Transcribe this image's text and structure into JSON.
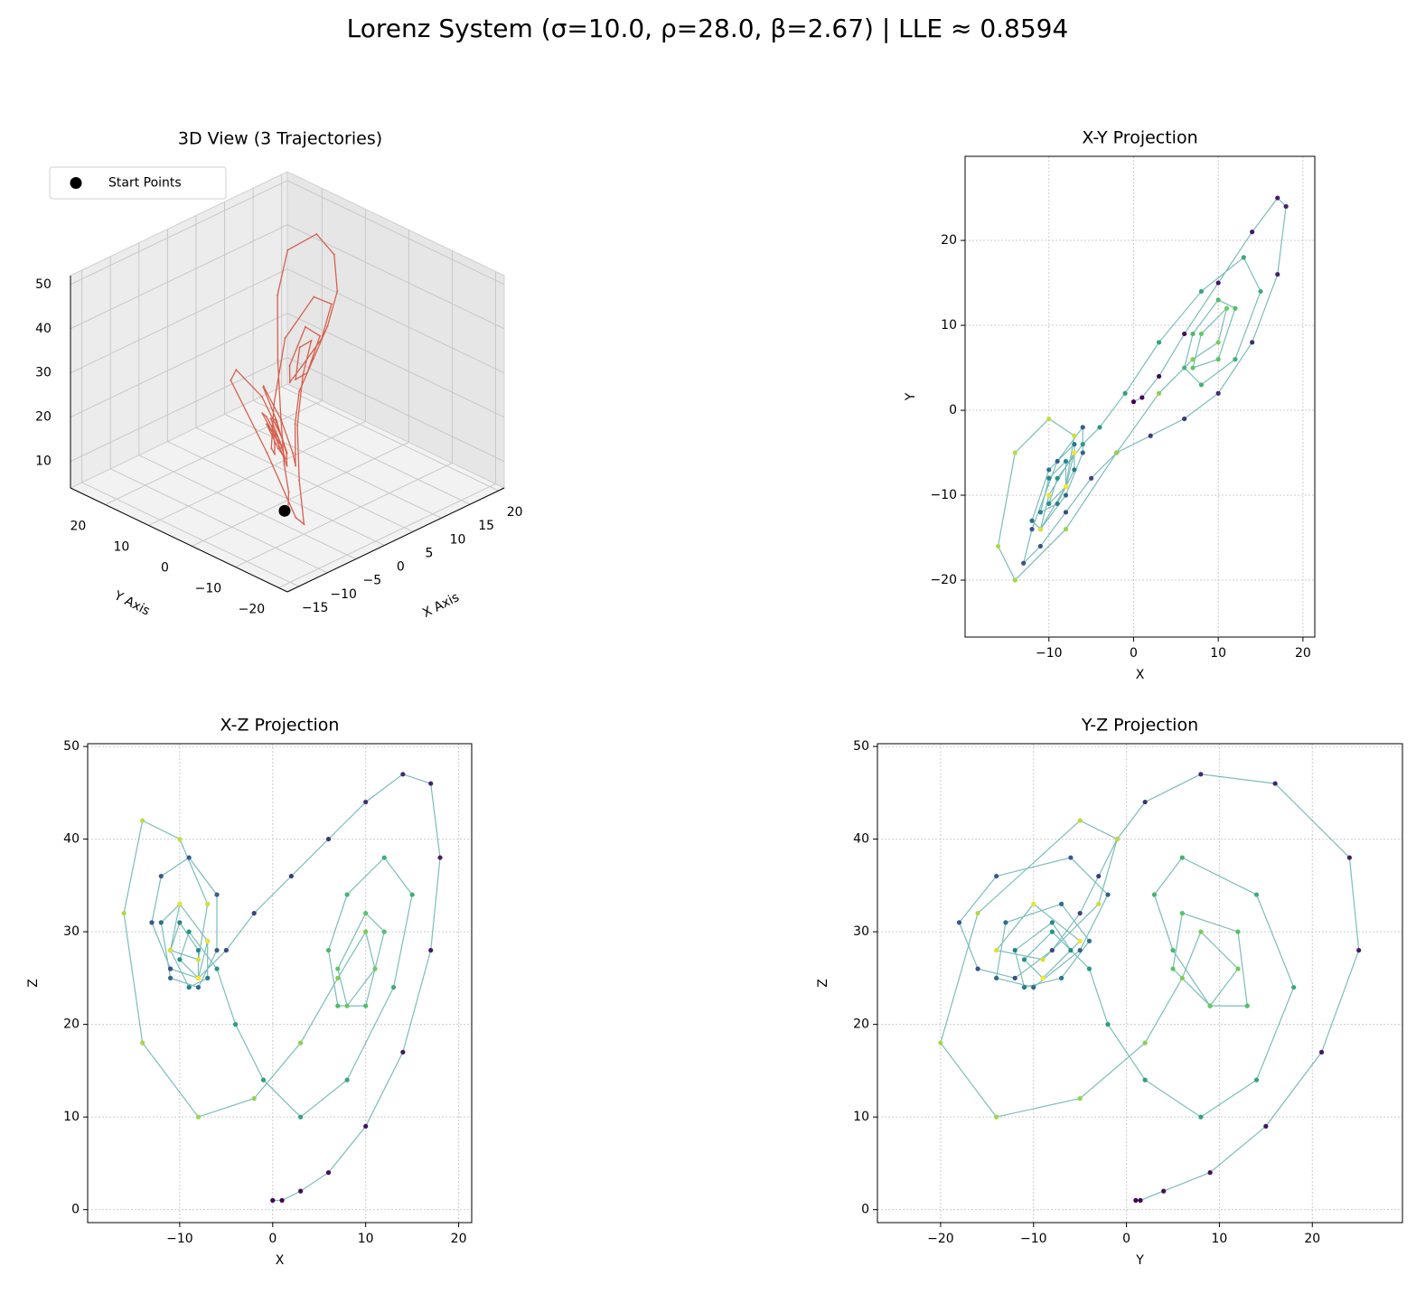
{
  "title": "Lorenz System (σ=10.0, ρ=28.0, β=2.67) | LLE ≈ 0.8594",
  "chart_data": [
    {
      "type": "line3d",
      "title": "3D View (3 Trajectories)",
      "xlabel": "X Axis",
      "ylabel": "Y Axis",
      "xlim": [
        -17,
        21
      ],
      "ylim": [
        -22,
        28
      ],
      "zlim": [
        4,
        52
      ],
      "xticks": [
        {
          "value": -15,
          "label": "−15"
        },
        {
          "value": -10,
          "label": "−10"
        },
        {
          "value": -5,
          "label": "−5"
        },
        0,
        5,
        10,
        15,
        20
      ],
      "yticks": [
        {
          "value": -20,
          "label": "−20"
        },
        {
          "value": -10,
          "label": "−10"
        },
        0,
        10,
        20
      ],
      "zticks": [
        10,
        20,
        30,
        40,
        50
      ],
      "trajectory": {
        "color": "#d6604d",
        "x": [
          0,
          1,
          3,
          6,
          10,
          14,
          17,
          18,
          17,
          14,
          10,
          6,
          2,
          -2,
          -5,
          -8,
          -11,
          -13,
          -12,
          -9,
          -6,
          -6,
          -8,
          -11,
          -12,
          -10,
          -7,
          -7,
          -9,
          -11,
          -10,
          -8,
          -8,
          -10,
          -9,
          -6,
          -4,
          -1,
          3,
          8,
          13,
          15,
          12,
          8,
          6,
          7,
          10,
          12,
          10,
          7,
          8,
          11,
          10,
          7,
          3,
          -2,
          -8,
          -14,
          -16,
          -14,
          -10,
          -7,
          -8,
          -11,
          -10,
          -7,
          -8
        ],
        "y": [
          1,
          1.5,
          4,
          9,
          15,
          21,
          25,
          24,
          16,
          8,
          2,
          -1,
          -3,
          -5,
          -8,
          -12,
          -16,
          -18,
          -14,
          -6,
          -2,
          -5,
          -10,
          -14,
          -13,
          -7,
          -4,
          -7,
          -11,
          -12,
          -8,
          -6,
          -9,
          -11,
          -8,
          -4,
          -2,
          2,
          8,
          14,
          18,
          14,
          6,
          3,
          5,
          9,
          13,
          12,
          6,
          5,
          9,
          12,
          8,
          6,
          2,
          -5,
          -14,
          -20,
          -16,
          -5,
          -1,
          -3,
          -9,
          -14,
          -10,
          -5,
          -9
        ],
        "z": [
          1,
          1,
          2,
          4,
          9,
          17,
          28,
          38,
          46,
          47,
          44,
          40,
          36,
          32,
          28,
          25,
          26,
          31,
          36,
          38,
          34,
          28,
          24,
          25,
          31,
          33,
          29,
          25,
          24,
          28,
          31,
          28,
          25,
          27,
          30,
          26,
          20,
          14,
          10,
          14,
          24,
          34,
          38,
          34,
          28,
          22,
          22,
          30,
          32,
          26,
          22,
          26,
          30,
          25,
          18,
          12,
          10,
          18,
          32,
          42,
          40,
          33,
          27,
          28,
          33,
          29,
          25
        ]
      },
      "start_points": {
        "name": "Start Points",
        "color": "#000000",
        "x": [
          0
        ],
        "y": [
          1
        ],
        "z": [
          1
        ]
      }
    },
    {
      "type": "scatter",
      "title": "X-Y Projection",
      "xlabel": "X",
      "ylabel": "Y",
      "grid": true,
      "colormap": [
        "#440154",
        "#3b528b",
        "#21918c",
        "#5ec962",
        "#fde725"
      ],
      "xlim": [
        -19.9,
        21.4
      ],
      "ylim": [
        -26.7,
        29.9
      ],
      "xticks": [
        {
          "value": -10,
          "label": "−10"
        },
        0,
        10,
        20
      ],
      "yticks": [
        {
          "value": -20,
          "label": "−20"
        },
        {
          "value": -10,
          "label": "−10"
        },
        0,
        10,
        20
      ],
      "x": [
        0,
        1,
        3,
        6,
        10,
        14,
        17,
        18,
        17,
        14,
        10,
        6,
        2,
        -2,
        -5,
        -8,
        -11,
        -13,
        -12,
        -9,
        -6,
        -6,
        -8,
        -11,
        -12,
        -10,
        -7,
        -7,
        -9,
        -11,
        -10,
        -8,
        -8,
        -10,
        -9,
        -6,
        -4,
        -1,
        3,
        8,
        13,
        15,
        12,
        8,
        6,
        7,
        10,
        12,
        10,
        7,
        8,
        11,
        10,
        7,
        3,
        -2,
        -8,
        -14,
        -16,
        -14,
        -10,
        -7,
        -8,
        -11,
        -10,
        -7,
        -8
      ],
      "y": [
        1,
        1.5,
        4,
        9,
        15,
        21,
        25,
        24,
        16,
        8,
        2,
        -1,
        -3,
        -5,
        -8,
        -12,
        -16,
        -18,
        -14,
        -6,
        -2,
        -5,
        -10,
        -14,
        -13,
        -7,
        -4,
        -7,
        -11,
        -12,
        -8,
        -6,
        -9,
        -11,
        -8,
        -4,
        -2,
        2,
        8,
        14,
        18,
        14,
        6,
        3,
        5,
        9,
        13,
        12,
        6,
        5,
        9,
        12,
        8,
        6,
        2,
        -5,
        -14,
        -20,
        -16,
        -5,
        -1,
        -3,
        -9,
        -14,
        -10,
        -5,
        -9
      ]
    },
    {
      "type": "scatter",
      "title": "X-Z Projection",
      "xlabel": "X",
      "ylabel": "Z",
      "grid": true,
      "colormap": [
        "#440154",
        "#3b528b",
        "#21918c",
        "#5ec962",
        "#fde725"
      ],
      "xlim": [
        -19.9,
        21.4
      ],
      "ylim": [
        -1.4,
        50.3
      ],
      "xticks": [
        {
          "value": -10,
          "label": "−10"
        },
        0,
        10,
        20
      ],
      "yticks": [
        0,
        10,
        20,
        30,
        40,
        50
      ],
      "x": [
        0,
        1,
        3,
        6,
        10,
        14,
        17,
        18,
        17,
        14,
        10,
        6,
        2,
        -2,
        -5,
        -8,
        -11,
        -13,
        -12,
        -9,
        -6,
        -6,
        -8,
        -11,
        -12,
        -10,
        -7,
        -7,
        -9,
        -11,
        -10,
        -8,
        -8,
        -10,
        -9,
        -6,
        -4,
        -1,
        3,
        8,
        13,
        15,
        12,
        8,
        6,
        7,
        10,
        12,
        10,
        7,
        8,
        11,
        10,
        7,
        3,
        -2,
        -8,
        -14,
        -16,
        -14,
        -10,
        -7,
        -8,
        -11,
        -10,
        -7,
        -8
      ],
      "y": [
        1,
        1,
        2,
        4,
        9,
        17,
        28,
        38,
        46,
        47,
        44,
        40,
        36,
        32,
        28,
        25,
        26,
        31,
        36,
        38,
        34,
        28,
        24,
        25,
        31,
        33,
        29,
        25,
        24,
        28,
        31,
        28,
        25,
        27,
        30,
        26,
        20,
        14,
        10,
        14,
        24,
        34,
        38,
        34,
        28,
        22,
        22,
        30,
        32,
        26,
        22,
        26,
        30,
        25,
        18,
        12,
        10,
        18,
        32,
        42,
        40,
        33,
        27,
        28,
        33,
        29,
        25
      ]
    },
    {
      "type": "scatter",
      "title": "Y-Z Projection",
      "xlabel": "Y",
      "ylabel": "Z",
      "grid": true,
      "colormap": [
        "#440154",
        "#3b528b",
        "#21918c",
        "#5ec962",
        "#fde725"
      ],
      "xlim": [
        -26.8,
        29.7
      ],
      "ylim": [
        -1.4,
        50.3
      ],
      "xticks": [
        {
          "value": -20,
          "label": "−20"
        },
        {
          "value": -10,
          "label": "−10"
        },
        0,
        10,
        20
      ],
      "yticks": [
        0,
        10,
        20,
        30,
        40,
        50
      ],
      "x": [
        1,
        1.5,
        4,
        9,
        15,
        21,
        25,
        24,
        16,
        8,
        2,
        -1,
        -3,
        -5,
        -8,
        -12,
        -16,
        -18,
        -14,
        -6,
        -2,
        -5,
        -10,
        -14,
        -13,
        -7,
        -4,
        -7,
        -11,
        -12,
        -8,
        -6,
        -9,
        -11,
        -8,
        -4,
        -2,
        2,
        8,
        14,
        18,
        14,
        6,
        3,
        5,
        9,
        13,
        12,
        6,
        5,
        9,
        12,
        8,
        6,
        2,
        -5,
        -14,
        -20,
        -16,
        -5,
        -1,
        -3,
        -9,
        -14,
        -10,
        -5,
        -9
      ],
      "y": [
        1,
        1,
        2,
        4,
        9,
        17,
        28,
        38,
        46,
        47,
        44,
        40,
        36,
        32,
        28,
        25,
        26,
        31,
        36,
        38,
        34,
        28,
        24,
        25,
        31,
        33,
        29,
        25,
        24,
        28,
        31,
        28,
        25,
        27,
        30,
        26,
        20,
        14,
        10,
        14,
        24,
        34,
        38,
        34,
        28,
        22,
        22,
        30,
        32,
        26,
        22,
        26,
        30,
        25,
        18,
        12,
        10,
        18,
        32,
        42,
        40,
        33,
        27,
        28,
        33,
        29,
        25
      ]
    }
  ]
}
